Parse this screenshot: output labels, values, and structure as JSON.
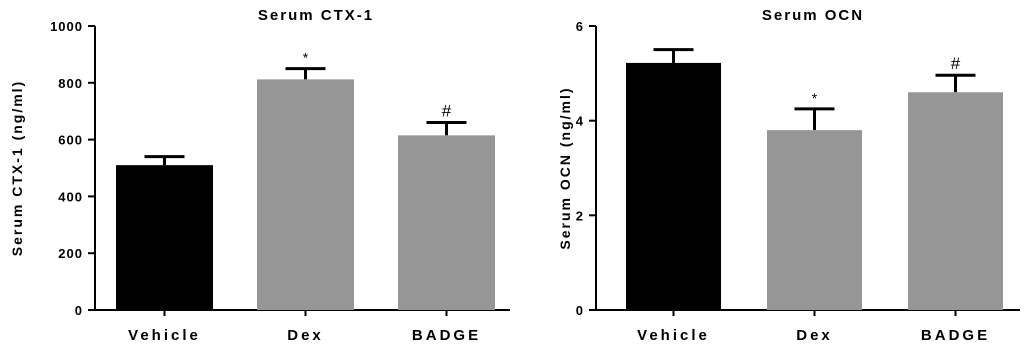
{
  "chart_data": [
    {
      "type": "bar",
      "title": "Serum CTX-1",
      "xlabel": "",
      "ylabel": "Serum CTX-1 (ng/ml)",
      "ylim": [
        0,
        1000
      ],
      "yticks": [
        0,
        200,
        400,
        600,
        800,
        1000
      ],
      "categories": [
        "Vehicle",
        "Dex",
        "BADGE"
      ],
      "values": [
        510,
        812,
        615
      ],
      "errors": [
        30,
        38,
        45
      ],
      "annotations": [
        "",
        "*",
        "#"
      ],
      "colors": [
        "#000000",
        "#969696",
        "#969696"
      ],
      "grid": false
    },
    {
      "type": "bar",
      "title": "Serum OCN",
      "xlabel": "",
      "ylabel": "Serum OCN (ng/ml)",
      "ylim": [
        0,
        6
      ],
      "yticks": [
        0,
        2,
        4,
        6
      ],
      "categories": [
        "Vehicle",
        "Dex",
        "BADGE"
      ],
      "values": [
        5.22,
        3.8,
        4.6
      ],
      "errors": [
        0.28,
        0.45,
        0.36
      ],
      "annotations": [
        "",
        "*",
        "#"
      ],
      "colors": [
        "#000000",
        "#969696",
        "#969696"
      ],
      "grid": false
    }
  ]
}
